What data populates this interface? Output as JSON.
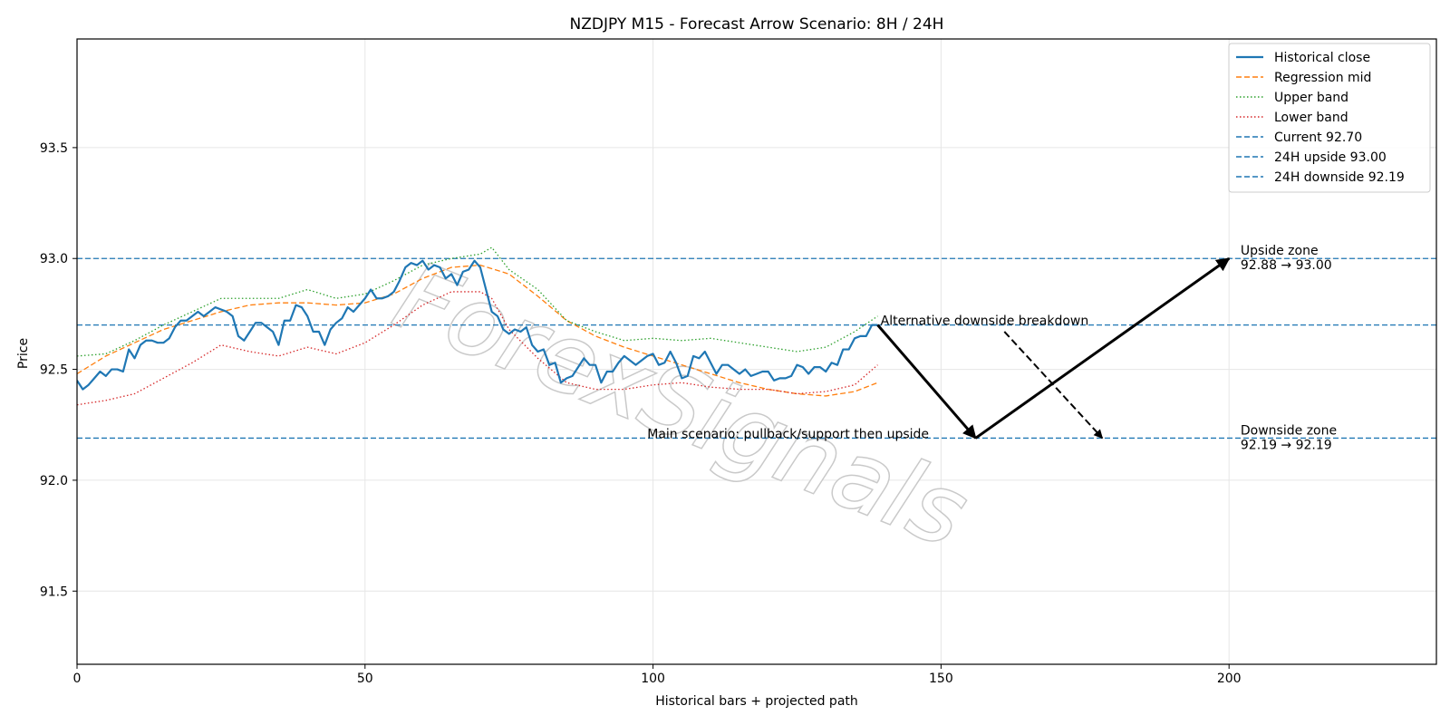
{
  "chart_data": {
    "type": "line",
    "title": "NZDJPY M15 - Forecast Arrow Scenario: 8H / 24H",
    "xlabel": "Historical bars + projected path",
    "ylabel": "Price",
    "xlim": [
      0,
      236
    ],
    "ylim": [
      91.17,
      93.99
    ],
    "xticks": [
      0,
      50,
      100,
      150,
      200
    ],
    "yticks": [
      "91.5",
      "92.0",
      "92.5",
      "93.0",
      "93.5"
    ],
    "grid": true,
    "legend_position": "top-right",
    "series": [
      {
        "name": "Historical close",
        "style": "solid",
        "color": "#1f77b4",
        "x": [
          0,
          1,
          2,
          3,
          4,
          5,
          6,
          7,
          8,
          9,
          10,
          11,
          12,
          13,
          14,
          15,
          16,
          17,
          18,
          19,
          20,
          21,
          22,
          23,
          24,
          25,
          26,
          27,
          28,
          29,
          30,
          31,
          32,
          33,
          34,
          35,
          36,
          37,
          38,
          39,
          40,
          41,
          42,
          43,
          44,
          45,
          46,
          47,
          48,
          49,
          50,
          51,
          52,
          53,
          54,
          55,
          56,
          57,
          58,
          59,
          60,
          61,
          62,
          63,
          64,
          65,
          66,
          67,
          68,
          69,
          70,
          71,
          72,
          73,
          74,
          75,
          76,
          77,
          78,
          79,
          80,
          81,
          82,
          83,
          84,
          85,
          86,
          87,
          88,
          89,
          90,
          91,
          92,
          93,
          94,
          95,
          96,
          97,
          98,
          99,
          100,
          101,
          102,
          103,
          104,
          105,
          106,
          107,
          108,
          109,
          110,
          111,
          112,
          113,
          114,
          115,
          116,
          117,
          118,
          119,
          120,
          121,
          122,
          123,
          124,
          125,
          126,
          127,
          128,
          129,
          130,
          131,
          132,
          133,
          134,
          135,
          136,
          137,
          138,
          139
        ],
        "values": [
          92.45,
          92.41,
          92.43,
          92.46,
          92.49,
          92.47,
          92.5,
          92.5,
          92.49,
          92.59,
          92.55,
          92.61,
          92.63,
          92.63,
          92.62,
          92.62,
          92.64,
          92.69,
          92.72,
          92.72,
          92.74,
          92.76,
          92.74,
          92.76,
          92.78,
          92.77,
          92.76,
          92.74,
          92.65,
          92.63,
          92.67,
          92.71,
          92.71,
          92.69,
          92.67,
          92.61,
          92.72,
          92.72,
          92.79,
          92.78,
          92.74,
          92.67,
          92.67,
          92.61,
          92.68,
          92.71,
          92.73,
          92.78,
          92.76,
          92.79,
          92.82,
          92.86,
          92.82,
          92.82,
          92.83,
          92.85,
          92.9,
          92.96,
          92.98,
          92.97,
          92.99,
          92.95,
          92.97,
          92.96,
          92.91,
          92.93,
          92.88,
          92.94,
          92.95,
          92.99,
          92.96,
          92.86,
          92.76,
          92.74,
          92.68,
          92.66,
          92.68,
          92.67,
          92.69,
          92.61,
          92.58,
          92.59,
          92.52,
          92.53,
          92.44,
          92.46,
          92.47,
          92.51,
          92.55,
          92.52,
          92.52,
          92.44,
          92.49,
          92.49,
          92.53,
          92.56,
          92.54,
          92.52,
          92.54,
          92.56,
          92.57,
          92.52,
          92.53,
          92.58,
          92.53,
          92.46,
          92.47,
          92.56,
          92.55,
          92.58,
          92.53,
          92.48,
          92.52,
          92.52,
          92.5,
          92.48,
          92.5,
          92.47,
          92.48,
          92.49,
          92.49,
          92.45,
          92.46,
          92.46,
          92.47,
          92.52,
          92.51,
          92.48,
          92.51,
          92.51,
          92.49,
          92.53,
          92.52,
          92.59,
          92.59,
          92.64,
          92.65,
          92.65,
          92.7,
          92.7
        ]
      },
      {
        "name": "Regression mid",
        "style": "dashed",
        "color": "#ff7f0e",
        "x": [
          0,
          5,
          10,
          15,
          20,
          25,
          30,
          35,
          40,
          45,
          50,
          55,
          60,
          65,
          70,
          75,
          80,
          85,
          90,
          95,
          100,
          105,
          110,
          115,
          120,
          125,
          130,
          135,
          139
        ],
        "values": [
          92.48,
          92.56,
          92.62,
          92.68,
          92.72,
          92.76,
          92.79,
          92.8,
          92.8,
          92.79,
          92.8,
          92.84,
          92.91,
          92.96,
          92.97,
          92.93,
          92.83,
          92.72,
          92.65,
          92.6,
          92.56,
          92.52,
          92.48,
          92.44,
          92.41,
          92.39,
          92.38,
          92.4,
          92.44
        ]
      },
      {
        "name": "Upper band",
        "style": "dotted",
        "color": "#2ca02c",
        "x": [
          0,
          5,
          10,
          15,
          20,
          25,
          30,
          35,
          40,
          45,
          50,
          55,
          60,
          65,
          70,
          72,
          75,
          80,
          85,
          90,
          95,
          100,
          105,
          110,
          115,
          120,
          125,
          130,
          135,
          139
        ],
        "values": [
          92.56,
          92.57,
          92.63,
          92.7,
          92.76,
          92.82,
          92.82,
          92.82,
          92.86,
          92.82,
          92.84,
          92.9,
          92.97,
          93.0,
          93.02,
          93.05,
          92.95,
          92.86,
          92.72,
          92.67,
          92.63,
          92.64,
          92.63,
          92.64,
          92.62,
          92.6,
          92.58,
          92.6,
          92.67,
          92.74
        ]
      },
      {
        "name": "Lower band",
        "style": "dotted",
        "color": "#d62728",
        "x": [
          0,
          5,
          10,
          15,
          20,
          25,
          30,
          35,
          40,
          45,
          50,
          55,
          60,
          65,
          70,
          72,
          75,
          80,
          85,
          90,
          95,
          100,
          105,
          110,
          115,
          120,
          125,
          130,
          135,
          139
        ],
        "values": [
          92.34,
          92.36,
          92.39,
          92.46,
          92.53,
          92.61,
          92.58,
          92.56,
          92.6,
          92.57,
          92.62,
          92.7,
          92.79,
          92.85,
          92.85,
          92.82,
          92.68,
          92.55,
          92.44,
          92.41,
          92.41,
          92.43,
          92.44,
          92.42,
          92.41,
          92.41,
          92.39,
          92.4,
          92.43,
          92.52
        ]
      }
    ],
    "hlines": [
      {
        "name": "Current 92.70",
        "y": 92.7,
        "color": "#1f77b4"
      },
      {
        "name": "24H upside 93.00",
        "y": 93.0,
        "color": "#1f77b4"
      },
      {
        "name": "24H downside 92.19",
        "y": 92.19,
        "color": "#1f77b4"
      }
    ],
    "arrows": [
      {
        "kind": "main",
        "style": "solid",
        "from": [
          139,
          92.7
        ],
        "to": [
          156,
          92.19
        ]
      },
      {
        "kind": "main",
        "style": "solid",
        "from": [
          156,
          92.19
        ],
        "to": [
          200,
          93.0
        ]
      },
      {
        "kind": "alternative",
        "style": "dashed",
        "from": [
          161,
          92.67
        ],
        "to": [
          178,
          92.19
        ]
      }
    ],
    "annotations": [
      {
        "text": "Alternative downside breakdown",
        "x": 139.5,
        "y": 92.7
      },
      {
        "text": "Main scenario: pullback/support then upside",
        "x": 99,
        "y": 92.19
      },
      {
        "text": "Upside zone",
        "x": 202,
        "y": 93.0
      },
      {
        "text": "92.88 → 93.00",
        "x": 202,
        "y": 93.0
      },
      {
        "text": "Downside zone",
        "x": 202,
        "y": 92.19
      },
      {
        "text": "92.19 → 92.19",
        "x": 202,
        "y": 92.19
      }
    ],
    "watermark": "ForexSignals"
  }
}
